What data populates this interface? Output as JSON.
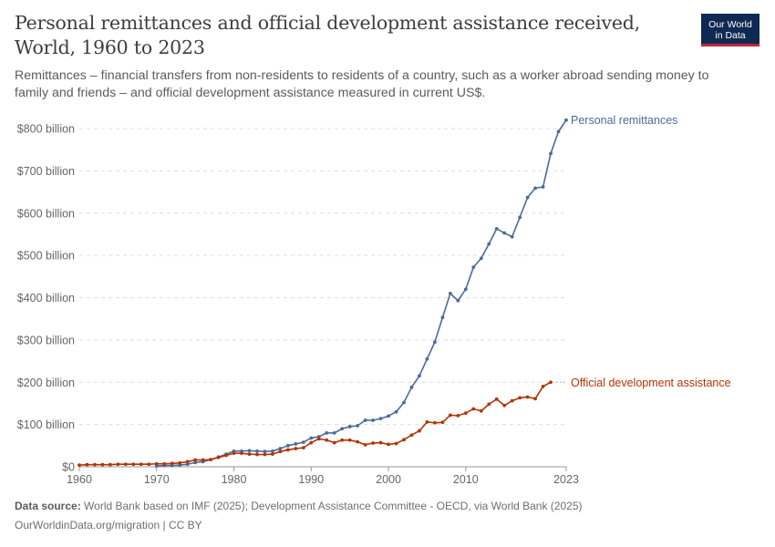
{
  "header": {
    "title": "Personal remittances and official development assistance received, World, 1960 to 2023",
    "subtitle": "Remittances – financial transfers from non-residents to residents of a country, such as a worker abroad sending money to family and friends – and official development assistance measured in current US$.",
    "logo_line1": "Our World",
    "logo_line2": "in Data"
  },
  "footer": {
    "source_label": "Data source:",
    "source_text": "World Bank based on IMF (2025); Development Assistance Committee - OECD, via World Bank (2025)",
    "url_text": "OurWorldinData.org/migration | CC BY"
  },
  "colors": {
    "remittances": "#4c6a9c",
    "oda": "#b13507",
    "grid": "#dddddd",
    "axis": "#666666"
  },
  "chart_data": {
    "type": "line",
    "xlim": [
      1960,
      2023
    ],
    "ylim": [
      0,
      800
    ],
    "x_ticks": [
      1960,
      1970,
      1980,
      1990,
      2000,
      2010,
      2023
    ],
    "y_ticks": [
      {
        "value": 0,
        "label": "$0"
      },
      {
        "value": 100,
        "label": "$100 billion"
      },
      {
        "value": 200,
        "label": "$200 billion"
      },
      {
        "value": 300,
        "label": "$300 billion"
      },
      {
        "value": 400,
        "label": "$400 billion"
      },
      {
        "value": 500,
        "label": "$500 billion"
      },
      {
        "value": 600,
        "label": "$600 billion"
      },
      {
        "value": 700,
        "label": "$700 billion"
      },
      {
        "value": 800,
        "label": "$800 billion"
      }
    ],
    "grid": true,
    "series": [
      {
        "name": "Personal remittances",
        "color": "#4c6a9c",
        "x": [
          1970,
          1971,
          1972,
          1973,
          1974,
          1975,
          1976,
          1977,
          1978,
          1979,
          1980,
          1981,
          1982,
          1983,
          1984,
          1985,
          1986,
          1987,
          1988,
          1989,
          1990,
          1991,
          1992,
          1993,
          1994,
          1995,
          1996,
          1997,
          1998,
          1999,
          2000,
          2001,
          2002,
          2003,
          2004,
          2005,
          2006,
          2007,
          2008,
          2009,
          2010,
          2011,
          2012,
          2013,
          2014,
          2015,
          2016,
          2017,
          2018,
          2019,
          2020,
          2021,
          2022,
          2023
        ],
        "values": [
          2,
          3,
          3,
          4,
          6,
          10,
          12,
          17,
          23,
          30,
          37,
          37,
          38,
          37,
          36,
          37,
          43,
          50,
          54,
          58,
          68,
          71,
          80,
          80,
          90,
          95,
          97,
          110,
          110,
          114,
          120,
          130,
          152,
          188,
          215,
          255,
          295,
          353,
          410,
          393,
          420,
          472,
          493,
          527,
          563,
          553,
          544,
          590,
          637,
          659,
          662,
          741,
          793,
          820
        ]
      },
      {
        "name": "Official development assistance",
        "color": "#b13507",
        "x": [
          1960,
          1961,
          1962,
          1963,
          1964,
          1965,
          1966,
          1967,
          1968,
          1969,
          1970,
          1971,
          1972,
          1973,
          1974,
          1975,
          1976,
          1977,
          1978,
          1979,
          1980,
          1981,
          1982,
          1983,
          1984,
          1985,
          1986,
          1987,
          1988,
          1989,
          1990,
          1991,
          1992,
          1993,
          1994,
          1995,
          1996,
          1997,
          1998,
          1999,
          2000,
          2001,
          2002,
          2003,
          2004,
          2005,
          2006,
          2007,
          2008,
          2009,
          2010,
          2011,
          2012,
          2013,
          2014,
          2015,
          2016,
          2017,
          2018,
          2019,
          2020,
          2021,
          2022
        ],
        "values": [
          4,
          5,
          5,
          5,
          5,
          6,
          6,
          6,
          6,
          6,
          7,
          7,
          8,
          9,
          12,
          16,
          16,
          17,
          22,
          27,
          32,
          32,
          30,
          29,
          29,
          30,
          36,
          40,
          43,
          45,
          57,
          66,
          63,
          57,
          63,
          63,
          59,
          52,
          56,
          57,
          53,
          55,
          64,
          75,
          85,
          106,
          104,
          105,
          122,
          121,
          127,
          137,
          132,
          148,
          160,
          145,
          156,
          163,
          165,
          161,
          190,
          200,
          null
        ]
      }
    ],
    "labels": [
      {
        "series": 0,
        "text": "Personal remittances"
      },
      {
        "series": 1,
        "text": "Official development assistance"
      }
    ]
  }
}
